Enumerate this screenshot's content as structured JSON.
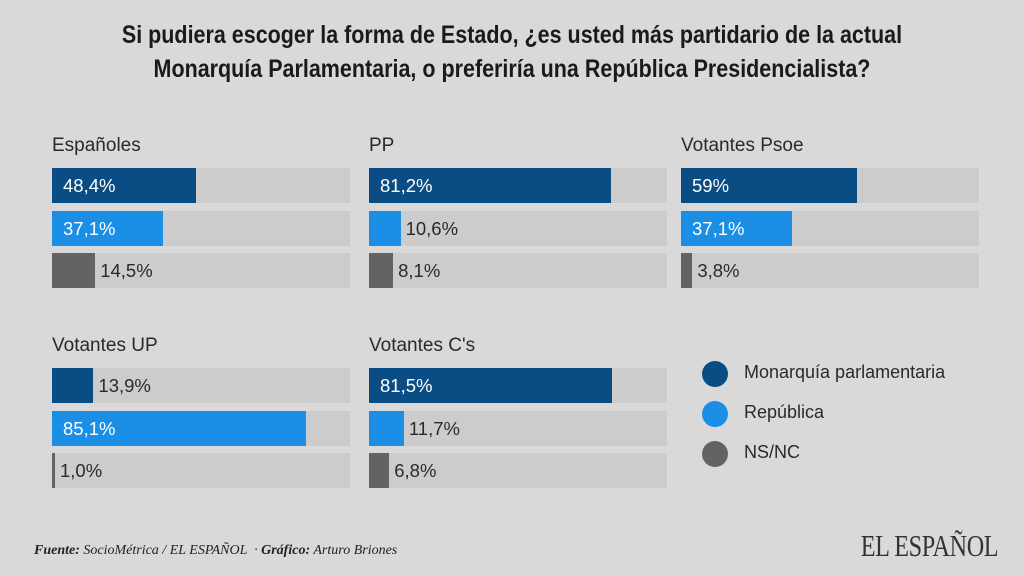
{
  "title_line1": "Si pudiera escoger la forma de Estado, ¿es usted más partidario de la actual",
  "title_line2": "Monarquía Parlamentaria, o preferiría una República Presidencialista?",
  "colors": {
    "monarquia": "#0a4d85",
    "republica": "#1b8fe6",
    "nsnc": "#636363",
    "track": "#cccccc",
    "background": "#d9d9d9"
  },
  "chart_data": {
    "type": "bar",
    "title": "Si pudiera escoger la forma de Estado, ¿es usted más partidario de la actual Monarquía Parlamentaria, o preferiría una República Presidencialista?",
    "xlabel": "",
    "ylabel": "",
    "xlim": [
      0,
      100
    ],
    "unit": "%",
    "legend_position": "bottom-right",
    "series_names": [
      "Monarquía parlamentaria",
      "República",
      "NS/NC"
    ],
    "groups": [
      {
        "name": "Españoles",
        "values": [
          48.4,
          37.1,
          14.5
        ],
        "labels": [
          "48,4%",
          "37,1%",
          "14,5%"
        ]
      },
      {
        "name": "PP",
        "values": [
          81.2,
          10.6,
          8.1
        ],
        "labels": [
          "81,2%",
          "10,6%",
          "8,1%"
        ]
      },
      {
        "name": "Votantes Psoe",
        "values": [
          59,
          37.1,
          3.8
        ],
        "labels": [
          "59%",
          "37,1%",
          "3,8%"
        ]
      },
      {
        "name": "Votantes UP",
        "values": [
          13.9,
          85.1,
          1.0
        ],
        "labels": [
          "13,9%",
          "85,1%",
          "1,0%"
        ]
      },
      {
        "name": "Votantes C's",
        "values": [
          81.5,
          11.7,
          6.8
        ],
        "labels": [
          "81,5%",
          "11,7%",
          "6,8%"
        ]
      }
    ]
  },
  "legend": [
    {
      "label": "Monarquía parlamentaria",
      "color": "#0a4d85"
    },
    {
      "label": "República",
      "color": "#1b8fe6"
    },
    {
      "label": "NS/NC",
      "color": "#636363"
    }
  ],
  "footer": {
    "source_key": "Fuente:",
    "source_value": "SocioMétrica / EL ESPAÑOL",
    "separator": "·",
    "graphic_key": "Gráfico:",
    "graphic_value": "Arturo Briones",
    "brand": "EL ESPAÑOL"
  }
}
